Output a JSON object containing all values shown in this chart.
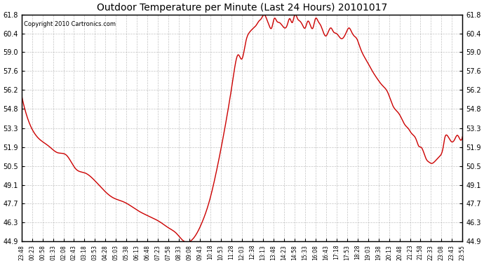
{
  "title": "Outdoor Temperature per Minute (Last 24 Hours) 20101017",
  "copyright_text": "Copyright 2010 Cartronics.com",
  "line_color": "#cc0000",
  "background_color": "#ffffff",
  "grid_color": "#aaaaaa",
  "ylim": [
    44.9,
    61.8
  ],
  "yticks": [
    44.9,
    46.3,
    47.7,
    49.1,
    50.5,
    51.9,
    53.3,
    54.8,
    56.2,
    57.6,
    59.0,
    60.4,
    61.8
  ],
  "xtick_labels": [
    "23:48",
    "00:23",
    "00:58",
    "01:33",
    "02:08",
    "02:43",
    "03:18",
    "03:53",
    "04:28",
    "05:03",
    "05:38",
    "06:13",
    "06:48",
    "07:23",
    "07:58",
    "08:33",
    "09:08",
    "09:43",
    "10:18",
    "10:53",
    "11:28",
    "12:03",
    "12:38",
    "13:13",
    "13:48",
    "14:23",
    "14:58",
    "15:33",
    "16:08",
    "16:43",
    "17:18",
    "17:53",
    "18:28",
    "19:03",
    "19:38",
    "20:13",
    "20:48",
    "21:23",
    "21:58",
    "22:33",
    "23:08",
    "23:43",
    "23:55"
  ],
  "keypoints": [
    [
      0,
      55.8
    ],
    [
      35,
      53.5
    ],
    [
      70,
      52.5
    ],
    [
      105,
      52.0
    ],
    [
      140,
      51.5
    ],
    [
      175,
      51.3
    ],
    [
      210,
      50.3
    ],
    [
      245,
      50.0
    ],
    [
      280,
      49.5
    ],
    [
      350,
      48.2
    ],
    [
      400,
      47.8
    ],
    [
      450,
      47.2
    ],
    [
      490,
      46.8
    ],
    [
      540,
      46.3
    ],
    [
      570,
      45.9
    ],
    [
      600,
      45.5
    ],
    [
      630,
      44.9
    ],
    [
      670,
      45.2
    ],
    [
      700,
      46.3
    ],
    [
      730,
      48.0
    ],
    [
      760,
      50.5
    ],
    [
      790,
      53.5
    ],
    [
      820,
      57.0
    ],
    [
      840,
      58.8
    ],
    [
      855,
      58.5
    ],
    [
      870,
      59.8
    ],
    [
      885,
      60.5
    ],
    [
      900,
      60.8
    ],
    [
      910,
      61.0
    ],
    [
      920,
      61.3
    ],
    [
      930,
      61.5
    ],
    [
      940,
      61.8
    ],
    [
      950,
      61.5
    ],
    [
      960,
      61.0
    ],
    [
      970,
      60.8
    ],
    [
      980,
      61.5
    ],
    [
      990,
      61.3
    ],
    [
      1000,
      61.2
    ],
    [
      1010,
      61.0
    ],
    [
      1020,
      60.8
    ],
    [
      1030,
      61.0
    ],
    [
      1040,
      61.5
    ],
    [
      1050,
      61.2
    ],
    [
      1060,
      61.8
    ],
    [
      1070,
      61.5
    ],
    [
      1080,
      61.3
    ],
    [
      1090,
      61.0
    ],
    [
      1100,
      60.8
    ],
    [
      1110,
      61.3
    ],
    [
      1120,
      61.0
    ],
    [
      1130,
      60.8
    ],
    [
      1140,
      61.5
    ],
    [
      1150,
      61.3
    ],
    [
      1160,
      61.0
    ],
    [
      1170,
      60.5
    ],
    [
      1180,
      60.2
    ],
    [
      1200,
      60.8
    ],
    [
      1210,
      60.5
    ],
    [
      1220,
      60.4
    ],
    [
      1230,
      60.2
    ],
    [
      1240,
      60.0
    ],
    [
      1260,
      60.5
    ],
    [
      1270,
      60.8
    ],
    [
      1280,
      60.5
    ],
    [
      1290,
      60.2
    ],
    [
      1300,
      60.0
    ],
    [
      1310,
      59.5
    ],
    [
      1320,
      59.0
    ],
    [
      1340,
      58.3
    ],
    [
      1360,
      57.6
    ],
    [
      1380,
      57.0
    ],
    [
      1400,
      56.5
    ],
    [
      1420,
      56.0
    ],
    [
      1440,
      55.0
    ],
    [
      1460,
      54.5
    ],
    [
      1470,
      54.2
    ],
    [
      1480,
      53.8
    ],
    [
      1490,
      53.5
    ],
    [
      1500,
      53.3
    ],
    [
      1510,
      53.0
    ],
    [
      1520,
      52.8
    ],
    [
      1530,
      52.5
    ],
    [
      1540,
      52.0
    ],
    [
      1550,
      51.9
    ],
    [
      1560,
      51.5
    ],
    [
      1570,
      51.0
    ],
    [
      1580,
      50.8
    ],
    [
      1590,
      50.7
    ],
    [
      1600,
      50.8
    ],
    [
      1610,
      51.0
    ],
    [
      1620,
      51.2
    ],
    [
      1630,
      51.5
    ],
    [
      1635,
      51.9
    ],
    [
      1640,
      52.5
    ],
    [
      1650,
      52.8
    ],
    [
      1660,
      52.5
    ],
    [
      1670,
      52.3
    ],
    [
      1680,
      52.5
    ],
    [
      1690,
      52.8
    ],
    [
      1700,
      52.5
    ],
    [
      1710,
      52.7
    ]
  ]
}
